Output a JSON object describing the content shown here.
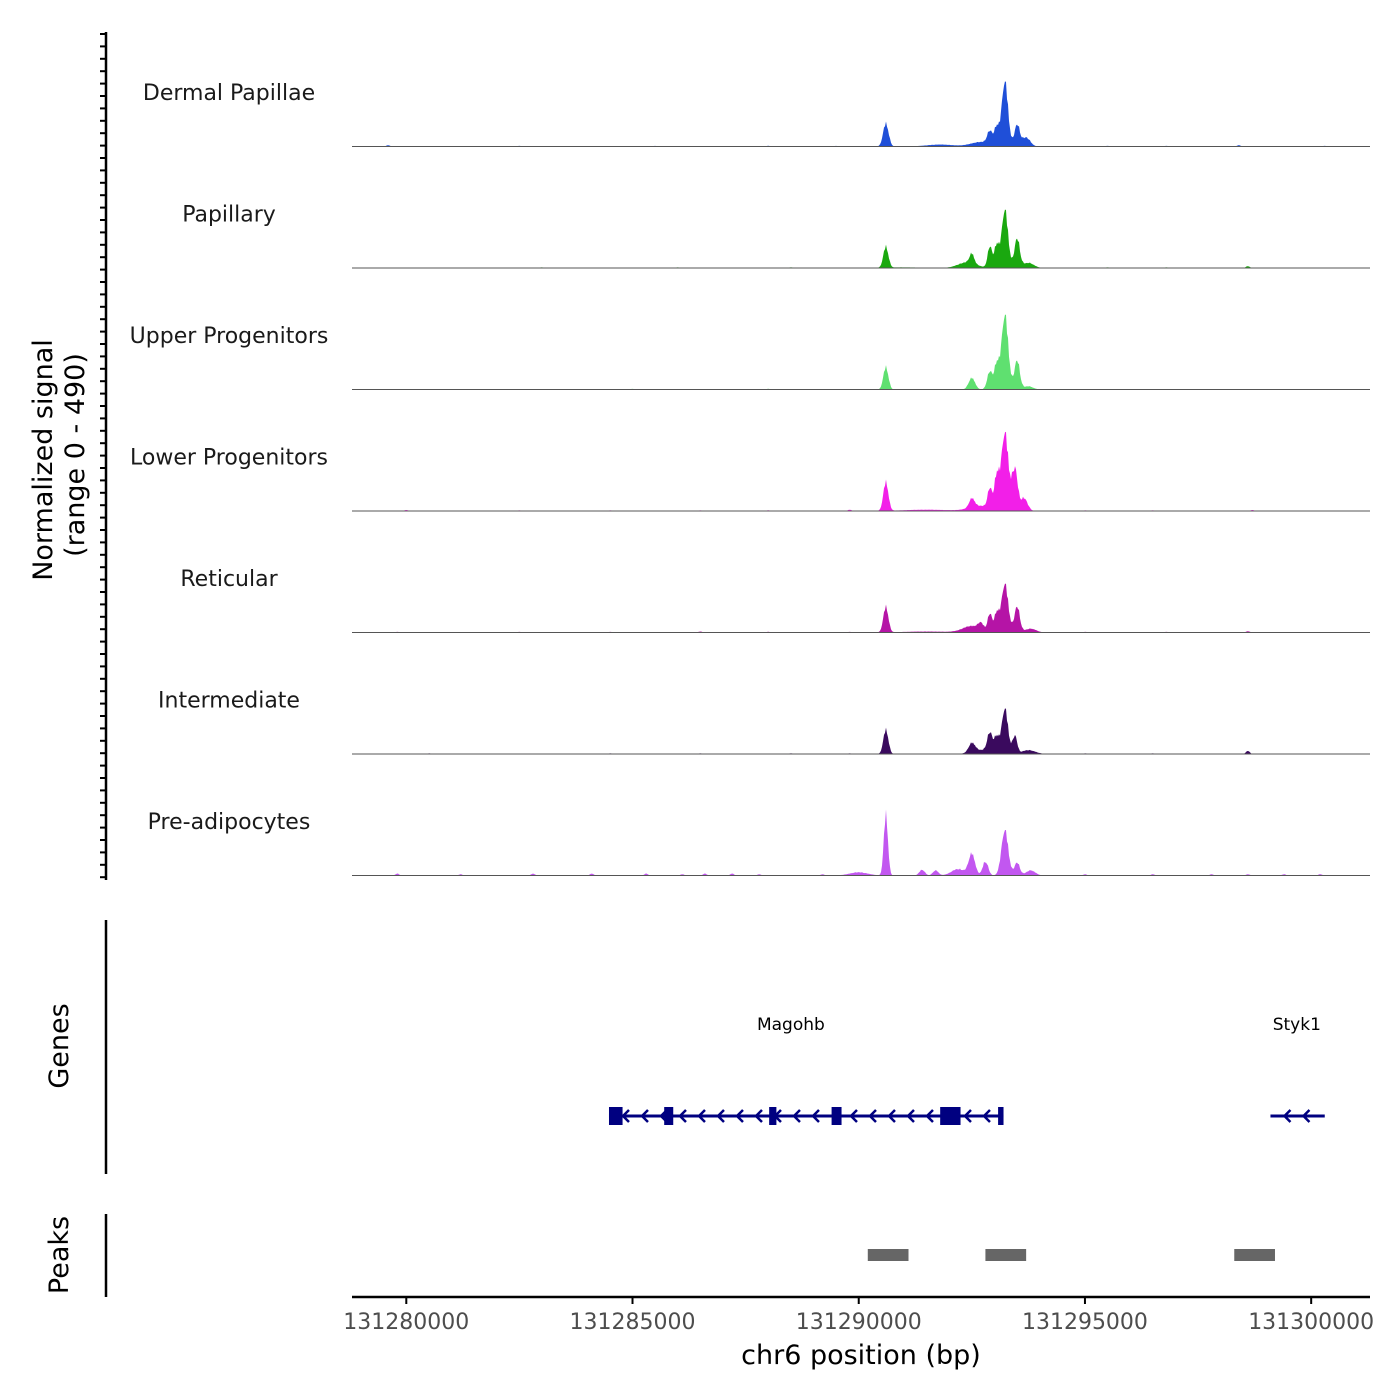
{
  "chart_data": {
    "type": "area",
    "chrom": "chr6",
    "xlim": [
      131278800,
      131301300
    ],
    "signal_range": [
      0,
      490
    ],
    "y_axis_title": "Normalized signal",
    "y_axis_range_text": "(range 0 - 490)",
    "genes_axis_title": "Genes",
    "peaks_axis_title": "Peaks",
    "xlabel": "chr6 position (bp)",
    "x_ticks": [
      {
        "value": 131280000,
        "label": "131280000"
      },
      {
        "value": 131285000,
        "label": "131285000"
      },
      {
        "value": 131290000,
        "label": "131290000"
      },
      {
        "value": 131295000,
        "label": "131295000"
      },
      {
        "value": 131300000,
        "label": "131300000"
      }
    ],
    "tracks": [
      {
        "name": "Dermal Papillae",
        "color": "#1f4fd8",
        "scale": 1.0,
        "peaks": [
          [
            131290600,
            0.36,
            60
          ],
          [
            131292700,
            0.07,
            220
          ],
          [
            131292900,
            0.2,
            60
          ],
          [
            131293050,
            0.28,
            50
          ],
          [
            131293230,
            1.0,
            70
          ],
          [
            131293500,
            0.33,
            60
          ],
          [
            131293700,
            0.14,
            90
          ],
          [
            131291800,
            0.03,
            300
          ]
        ],
        "noise": [
          [
            131279600,
            0.02
          ],
          [
            131282500,
            0.01
          ],
          [
            131285500,
            0.01
          ],
          [
            131288000,
            0.01
          ],
          [
            131289500,
            0.01
          ],
          [
            131295500,
            0.01
          ],
          [
            131296800,
            0.01
          ],
          [
            131298400,
            0.02
          ],
          [
            131300300,
            0.01
          ]
        ]
      },
      {
        "name": "Papillary",
        "color": "#1aa80f",
        "scale": 1.0,
        "peaks": [
          [
            131290600,
            0.33,
            55
          ],
          [
            131292400,
            0.09,
            200
          ],
          [
            131292500,
            0.15,
            50
          ],
          [
            131292900,
            0.33,
            50
          ],
          [
            131293050,
            0.36,
            50
          ],
          [
            131293230,
            0.9,
            70
          ],
          [
            131293500,
            0.45,
            60
          ],
          [
            131293750,
            0.08,
            120
          ],
          [
            131291000,
            0.01,
            400
          ]
        ],
        "noise": [
          [
            131283000,
            0.01
          ],
          [
            131286000,
            0.01
          ],
          [
            131288500,
            0.01
          ],
          [
            131295500,
            0.01
          ],
          [
            131296800,
            0.01
          ],
          [
            131298600,
            0.03
          ]
        ]
      },
      {
        "name": "Upper Progenitors",
        "color": "#5fe070",
        "scale": 1.0,
        "peaks": [
          [
            131290600,
            0.35,
            55
          ],
          [
            131292500,
            0.18,
            70
          ],
          [
            131292900,
            0.28,
            60
          ],
          [
            131293050,
            0.38,
            50
          ],
          [
            131293230,
            1.15,
            75
          ],
          [
            131293500,
            0.45,
            60
          ],
          [
            131293750,
            0.05,
            100
          ]
        ],
        "noise": [
          [
            131285000,
            0.01
          ],
          [
            131288000,
            0.01
          ]
        ]
      },
      {
        "name": "Lower Progenitors",
        "color": "#f21fe8",
        "scale": 1.0,
        "peaks": [
          [
            131290600,
            0.45,
            55
          ],
          [
            131292500,
            0.14,
            60
          ],
          [
            131292700,
            0.08,
            250
          ],
          [
            131292900,
            0.3,
            50
          ],
          [
            131293050,
            0.5,
            50
          ],
          [
            131293230,
            1.2,
            80
          ],
          [
            131293450,
            0.65,
            60
          ],
          [
            131293650,
            0.2,
            80
          ],
          [
            131291500,
            0.02,
            500
          ]
        ],
        "noise": [
          [
            131280000,
            0.015
          ],
          [
            131282500,
            0.01
          ],
          [
            131284500,
            0.01
          ],
          [
            131286500,
            0.01
          ],
          [
            131288000,
            0.01
          ],
          [
            131289800,
            0.02
          ],
          [
            131295000,
            0.01
          ],
          [
            131296500,
            0.01
          ],
          [
            131298700,
            0.015
          ]
        ]
      },
      {
        "name": "Reticular",
        "color": "#b514a6",
        "scale": 1.0,
        "peaks": [
          [
            131290600,
            0.4,
            55
          ],
          [
            131292500,
            0.1,
            200
          ],
          [
            131292700,
            0.1,
            60
          ],
          [
            131292900,
            0.28,
            50
          ],
          [
            131293050,
            0.3,
            50
          ],
          [
            131293230,
            0.75,
            75
          ],
          [
            131293500,
            0.4,
            60
          ],
          [
            131293800,
            0.06,
            120
          ],
          [
            131291500,
            0.015,
            500
          ]
        ],
        "noise": [
          [
            131279800,
            0.01
          ],
          [
            131282500,
            0.01
          ],
          [
            131284500,
            0.01
          ],
          [
            131286500,
            0.015
          ],
          [
            131288000,
            0.01
          ],
          [
            131289800,
            0.01
          ],
          [
            131295000,
            0.01
          ],
          [
            131296800,
            0.01
          ],
          [
            131298600,
            0.02
          ]
        ]
      },
      {
        "name": "Intermediate",
        "color": "#3a0a5e",
        "scale": 1.0,
        "peaks": [
          [
            131290600,
            0.38,
            55
          ],
          [
            131292500,
            0.14,
            70
          ],
          [
            131292700,
            0.06,
            200
          ],
          [
            131292900,
            0.3,
            60
          ],
          [
            131293050,
            0.25,
            50
          ],
          [
            131293230,
            0.7,
            70
          ],
          [
            131293450,
            0.28,
            50
          ],
          [
            131293750,
            0.06,
            150
          ]
        ],
        "noise": [
          [
            131280500,
            0.01
          ],
          [
            131284500,
            0.01
          ],
          [
            131286500,
            0.01
          ],
          [
            131288500,
            0.01
          ],
          [
            131289800,
            0.01
          ],
          [
            131295000,
            0.01
          ],
          [
            131296500,
            0.01
          ],
          [
            131298600,
            0.05
          ]
        ]
      },
      {
        "name": "Pre-adipocytes",
        "color": "#c257f0",
        "scale": 1.0,
        "peaks": [
          [
            131290600,
            0.95,
            45
          ],
          [
            131290000,
            0.05,
            200
          ],
          [
            131291400,
            0.09,
            60
          ],
          [
            131291700,
            0.08,
            60
          ],
          [
            131292200,
            0.1,
            150
          ],
          [
            131292500,
            0.33,
            70
          ],
          [
            131292800,
            0.22,
            60
          ],
          [
            131293230,
            0.7,
            75
          ],
          [
            131293500,
            0.2,
            60
          ],
          [
            131293800,
            0.08,
            100
          ]
        ],
        "noise": [
          [
            131279800,
            0.03
          ],
          [
            131281200,
            0.02
          ],
          [
            131282800,
            0.03
          ],
          [
            131284100,
            0.03
          ],
          [
            131285300,
            0.03
          ],
          [
            131286100,
            0.02
          ],
          [
            131286600,
            0.03
          ],
          [
            131287200,
            0.03
          ],
          [
            131287800,
            0.02
          ],
          [
            131289200,
            0.02
          ],
          [
            131295000,
            0.02
          ],
          [
            131296500,
            0.02
          ],
          [
            131297800,
            0.02
          ],
          [
            131298600,
            0.02
          ],
          [
            131299400,
            0.02
          ],
          [
            131300200,
            0.02
          ]
        ]
      }
    ],
    "genes": [
      {
        "name": "Magohb",
        "strand": "-",
        "start": 131284480,
        "end": 131293200,
        "label_pos": 131287750,
        "exons": [
          [
            131284480,
            131284780
          ],
          [
            131285700,
            131285900
          ],
          [
            131288020,
            131288180
          ],
          [
            131289400,
            131289620
          ],
          [
            131291800,
            131292250
          ],
          [
            131293080,
            131293200
          ]
        ]
      },
      {
        "name": "Styk1",
        "strand": "-",
        "start": 131299100,
        "end": 131300300,
        "label_pos": 131299150,
        "exons": []
      }
    ],
    "peak_regions": [
      [
        131290200,
        131291100
      ],
      [
        131292800,
        131293700
      ],
      [
        131298300,
        131299200
      ]
    ],
    "colors": {
      "gene": "#000080",
      "peak": "#666666",
      "baseline": "#555555",
      "axis": "#000000"
    }
  }
}
